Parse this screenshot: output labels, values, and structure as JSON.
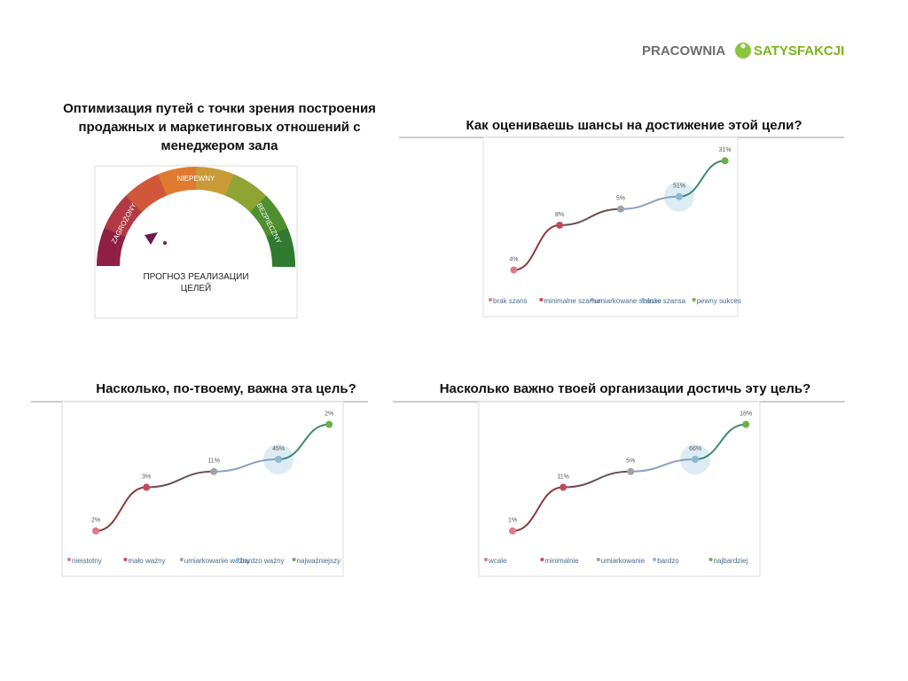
{
  "logo": {
    "left": "PRACOWNIA",
    "right": "SATYSFAKCJI"
  },
  "gauge": {
    "title": "Оптимизация путей с точки зрения построения продажных и маркетинговых отношений с менеджером зала",
    "labels": [
      "ZAGROŻONY",
      "NIEPEWNY",
      "BEZPIECZNY"
    ],
    "caption": "ПРОГНОЗ РЕАЛИЗАЦИИ ЦЕЛЕЙ"
  },
  "panels": [
    {
      "title": "Как оцениваешь шансы на достижение этой цели?",
      "points": [
        "4%",
        "8%",
        "5%",
        "51%",
        "31%"
      ],
      "legend": [
        "brak szans",
        "minimalne szanse",
        "umiarkowane szanse",
        "duże szansa",
        "pewny sukces"
      ]
    },
    {
      "title": "Насколько, по-твоему, важна эта цель?",
      "points": [
        "2%",
        "3%",
        "11%",
        "45%",
        "2%"
      ],
      "legend": [
        "nieistotny",
        "mało ważny",
        "umiarkowanie ważny",
        "bardzo ważny",
        "najważniejszy"
      ]
    },
    {
      "title": "Насколько важно твоей организации достичь эту цель?",
      "points": [
        "1%",
        "11%",
        "5%",
        "66%",
        "18%"
      ],
      "legend": [
        "wcale",
        "minimalnie",
        "umiarkowanie",
        "bardzo",
        "najbardziej"
      ]
    }
  ]
}
